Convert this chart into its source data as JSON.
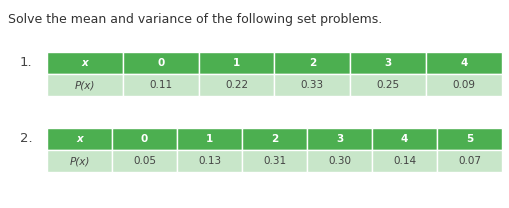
{
  "title": "Solve the mean and variance of the following set problems.",
  "title_fontsize": 9.0,
  "bg_color": "#ffffff",
  "header_color": "#4CAF50",
  "row_color": "#c8e6c9",
  "header_text_color": "#ffffff",
  "row_text_color": "#444444",
  "table1": {
    "label": "1.",
    "header": [
      "x",
      "0",
      "1",
      "2",
      "3",
      "4"
    ],
    "row": [
      "P(x)",
      "0.11",
      "0.22",
      "0.33",
      "0.25",
      "0.09"
    ]
  },
  "table2": {
    "label": "2.",
    "header": [
      "x",
      "0",
      "1",
      "2",
      "3",
      "4",
      "5"
    ],
    "row": [
      "P(x)",
      "0.05",
      "0.13",
      "0.31",
      "0.30",
      "0.14",
      "0.07"
    ]
  },
  "cell_fontsize": 7.5,
  "label_fontsize": 9.5
}
